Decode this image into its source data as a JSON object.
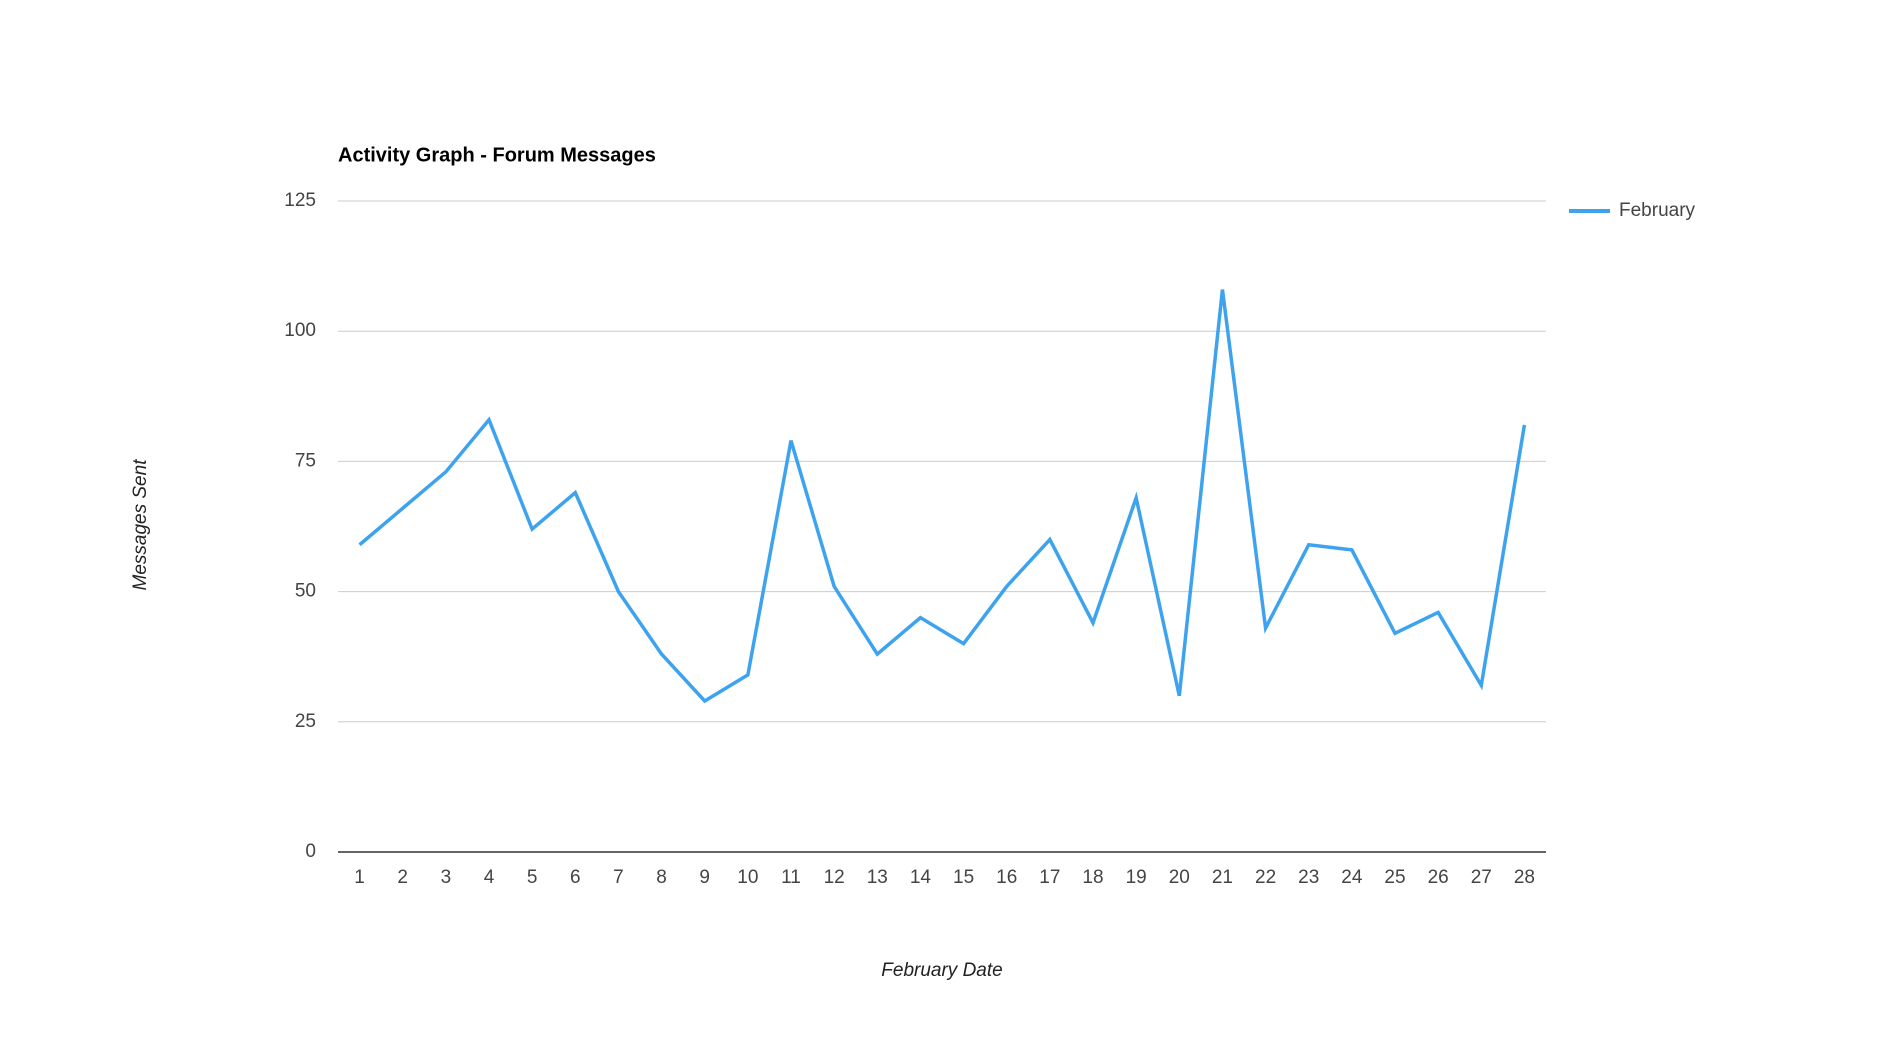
{
  "chart_data": {
    "type": "line",
    "title": "Activity Graph - Forum Messages",
    "x_label": "February Date",
    "y_label": "Messages Sent",
    "categories": [
      "1",
      "2",
      "3",
      "4",
      "5",
      "6",
      "7",
      "8",
      "9",
      "10",
      "11",
      "12",
      "13",
      "14",
      "15",
      "16",
      "17",
      "18",
      "19",
      "20",
      "21",
      "22",
      "23",
      "24",
      "25",
      "26",
      "27",
      "28"
    ],
    "series": [
      {
        "name": "February",
        "color": "#3ea3ef",
        "values": [
          59,
          66,
          73,
          83,
          62,
          69,
          50,
          38,
          29,
          34,
          79,
          51,
          38,
          45,
          40,
          51,
          60,
          44,
          68,
          30,
          108,
          43,
          59,
          58,
          42,
          46,
          32,
          82
        ]
      }
    ],
    "ylim": [
      0,
      125
    ],
    "yticks": [
      0,
      25,
      50,
      75,
      100,
      125
    ],
    "grid": true,
    "legend": "right"
  }
}
